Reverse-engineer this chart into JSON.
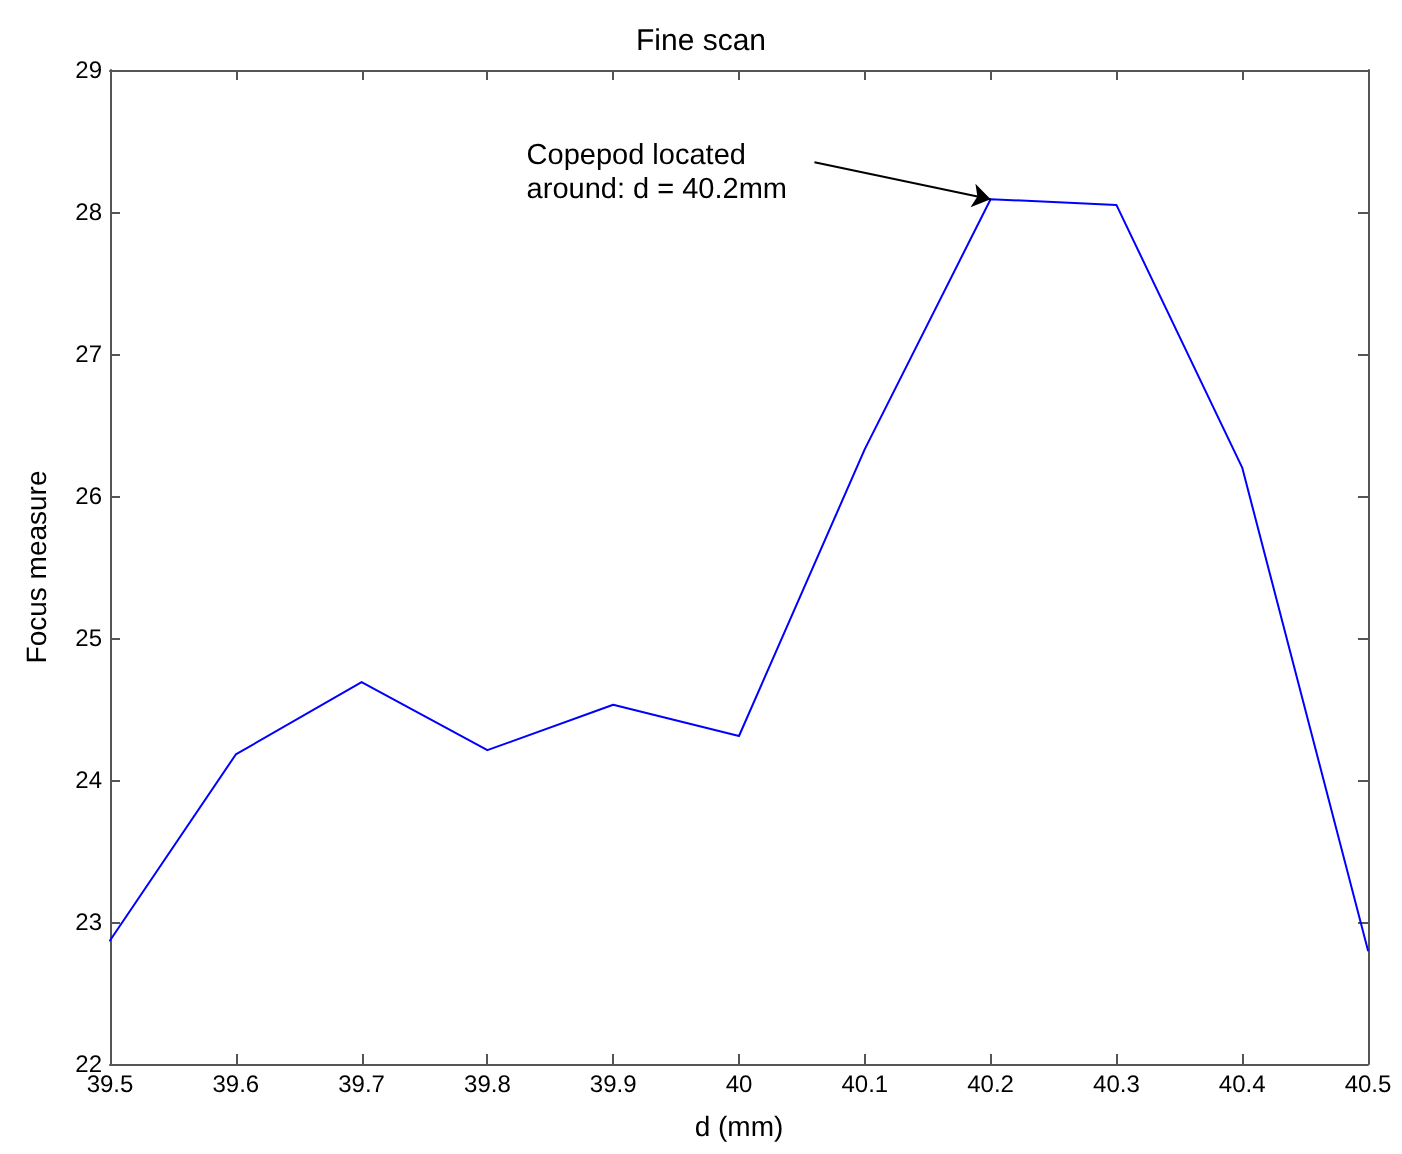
{
  "chart_data": {
    "type": "line",
    "title": "Fine scan",
    "xlabel": "d (mm)",
    "ylabel": "Focus measure",
    "x": [
      39.5,
      39.6,
      39.7,
      39.8,
      39.9,
      40.0,
      40.1,
      40.2,
      40.3,
      40.4,
      40.5
    ],
    "series": [
      {
        "color": "#0000ff",
        "values": [
          22.87,
          24.18,
          24.69,
          24.21,
          24.53,
          24.31,
          26.33,
          28.09,
          28.05,
          26.2,
          22.8
        ]
      }
    ],
    "xlim": [
      39.5,
      40.5
    ],
    "xticks": [
      39.5,
      39.6,
      39.7,
      39.8,
      39.9,
      40,
      40.1,
      40.2,
      40.3,
      40.4,
      40.5
    ],
    "ylim": [
      22,
      29
    ],
    "yticks": [
      22,
      23,
      24,
      25,
      26,
      27,
      28,
      29
    ],
    "annotations": [
      {
        "text": "Copepod located\naround: d = 40.2mm",
        "x": 40.2,
        "y": 28.09
      }
    ],
    "grid": false,
    "marker": "none",
    "line_style": "solid"
  }
}
